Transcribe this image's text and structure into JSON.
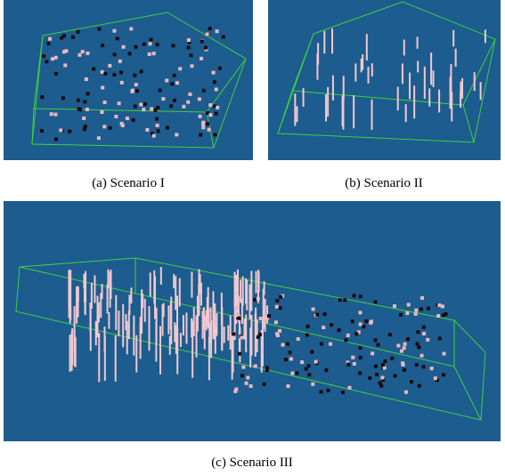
{
  "figure": {
    "panels": [
      {
        "caption": "(a)  Scenario I"
      },
      {
        "caption": "(b)  Scenario II"
      },
      {
        "caption": "(c)  Scenario III"
      }
    ]
  }
}
